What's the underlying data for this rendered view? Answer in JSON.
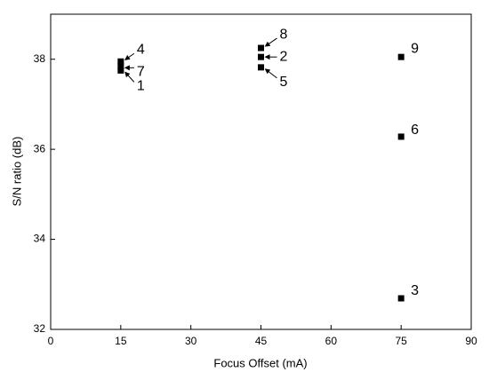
{
  "chart_data": {
    "type": "scatter",
    "xlabel": "Focus Offset (mA)",
    "ylabel": "S/N ratio (dB)",
    "x": [
      15,
      15,
      15,
      45,
      45,
      45,
      75,
      75,
      75
    ],
    "values": [
      37.75,
      37.95,
      37.85,
      38.25,
      38.05,
      37.82,
      38.05,
      36.28,
      32.69
    ],
    "labels": [
      "1",
      "4",
      "7",
      "8",
      "2",
      "5",
      "9",
      "6",
      "3"
    ],
    "color": "#000000",
    "xlim": [
      0,
      90
    ],
    "xticks": [
      0,
      15,
      30,
      45,
      60,
      75,
      90
    ],
    "ylim": [
      32,
      39
    ],
    "yticks": [
      32,
      34,
      36,
      38
    ]
  }
}
